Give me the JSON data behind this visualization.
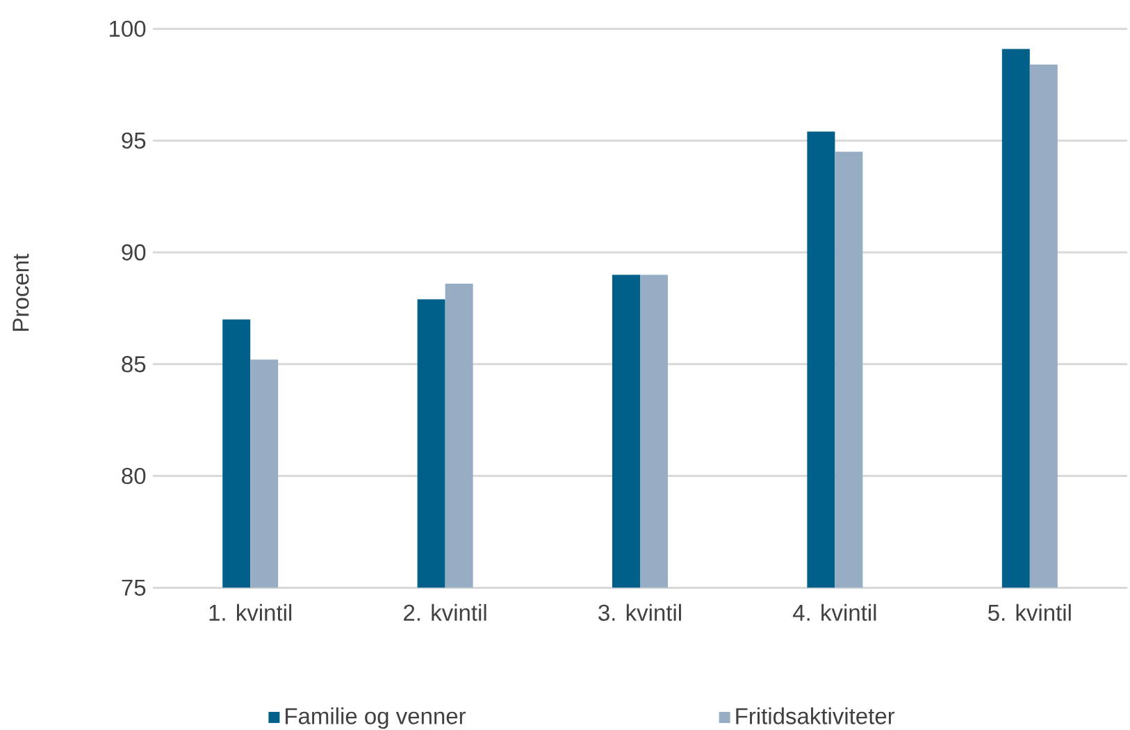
{
  "chart_data": {
    "type": "bar",
    "ylabel": "Procent",
    "categories": [
      "1. kvintil",
      "2. kvintil",
      "3. kvintil",
      "4. kvintil",
      "5. kvintil"
    ],
    "series": [
      {
        "name": "Familie og venner",
        "color": "#00608a",
        "values": [
          87.0,
          87.9,
          89.0,
          95.4,
          99.1
        ]
      },
      {
        "name": "Fritidsaktiviteter",
        "color": "#97adc4",
        "values": [
          85.2,
          88.6,
          89.0,
          94.5,
          98.4
        ]
      }
    ],
    "ylim": [
      75,
      100
    ],
    "yticks": [
      75,
      80,
      85,
      90,
      95,
      100
    ],
    "grid": "y",
    "legend": "bottom"
  }
}
